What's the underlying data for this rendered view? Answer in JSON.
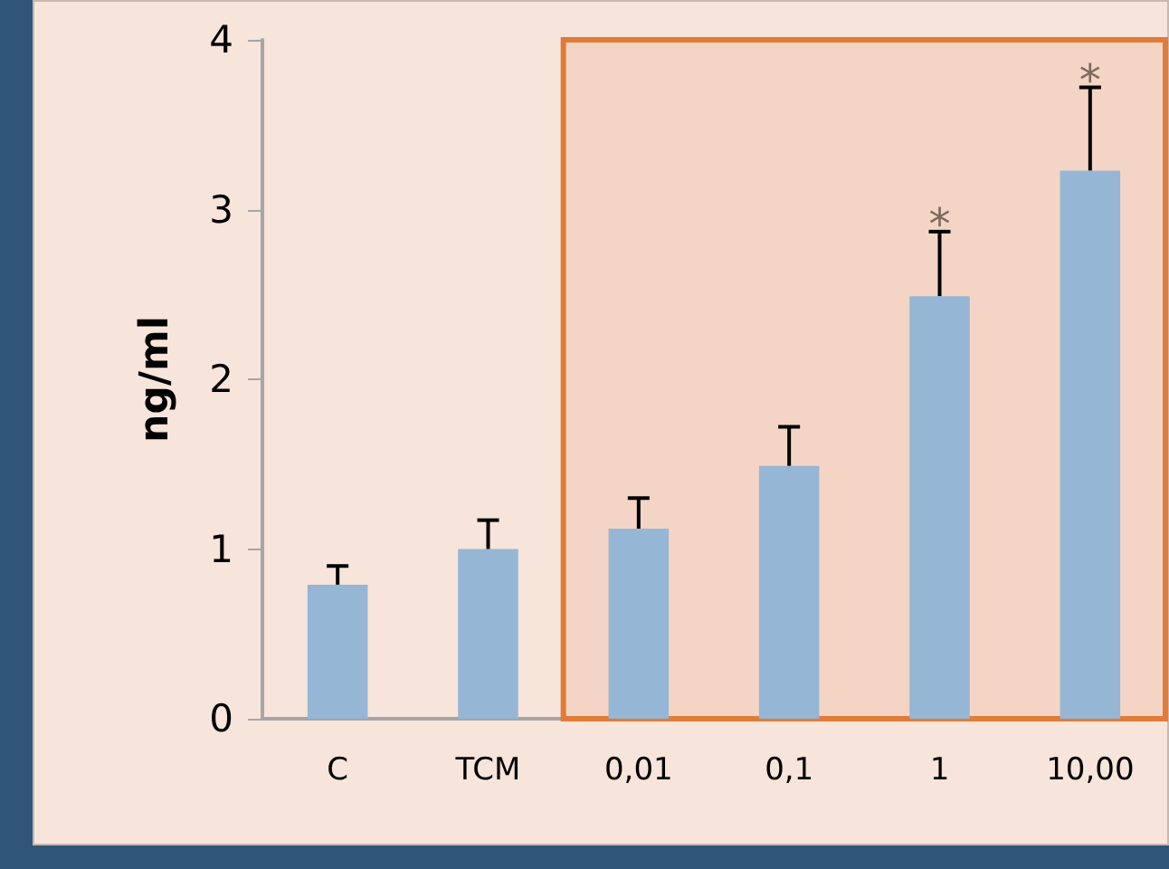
{
  "chart_data": {
    "type": "bar",
    "ylabel": "ng/ml",
    "categories": [
      "C",
      "TCM",
      "0,01",
      "0,1",
      "1",
      "10,00"
    ],
    "values": [
      0.79,
      1.0,
      1.12,
      1.49,
      2.49,
      3.23
    ],
    "errors": [
      0.11,
      0.17,
      0.18,
      0.23,
      0.38,
      0.49
    ],
    "color": "#95b6d4",
    "ylim": [
      0,
      4
    ],
    "yticks": [
      0,
      1,
      2,
      3,
      4
    ],
    "grid": false,
    "annotations": [
      {
        "text": "*",
        "x": "1",
        "y": 2.87
      },
      {
        "text": "*",
        "x": "10,00",
        "y": 3.72
      }
    ],
    "bands": [
      {
        "axis": "x",
        "from": "0,01",
        "to": "10,00",
        "color": "#e07b39"
      }
    ]
  }
}
